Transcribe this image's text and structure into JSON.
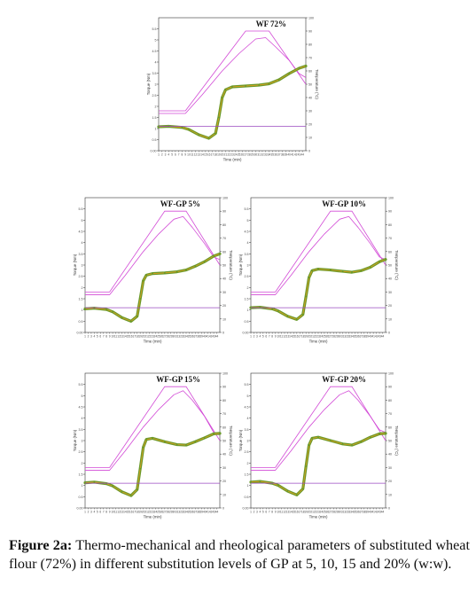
{
  "colors": {
    "temperature": "#d24ad6",
    "torque": "#6a9a2a",
    "torque_core": "#f0a020",
    "baseline": "#9a4ac0",
    "axis": "#333333"
  },
  "figure": {
    "caption_label": "Figure 2a:",
    "caption_text": "Thermo-mechanical and rheological parameters of substituted wheat flour (72%) in different substitution levels of GP at 5, 10, 15 and 20% (w:w)."
  },
  "chart_data": [
    {
      "type": "line",
      "title": "WF 72%",
      "xlabel": "Time (min)",
      "ylabel": "Torque (Nm)",
      "ylabel_right": "Temperature (°C)",
      "xlim": [
        1,
        45
      ],
      "ylim": [
        0,
        6
      ],
      "ylim_right": [
        0,
        100
      ],
      "y_ticks": [
        "0.00",
        "0.5",
        "1",
        "1.5",
        "2",
        "2.5",
        "3",
        "3.5",
        "4",
        "4.5",
        "5",
        "5.5"
      ],
      "y_ticks_right": [
        "0",
        "10",
        "20",
        "30",
        "40",
        "50",
        "60",
        "70",
        "80",
        "90",
        "100"
      ],
      "x_ticks": [
        "1",
        "2",
        "3",
        "4",
        "5",
        "6",
        "7",
        "8",
        "9",
        "10",
        "11",
        "12",
        "13",
        "14",
        "15",
        "16",
        "17",
        "18",
        "19",
        "20",
        "21",
        "22",
        "23",
        "24",
        "25",
        "26",
        "27",
        "28",
        "29",
        "30",
        "31",
        "32",
        "33",
        "34",
        "35",
        "36",
        "37",
        "38",
        "39",
        "40",
        "41",
        "42",
        "43",
        "44"
      ],
      "series": [
        {
          "role": "temperature_target",
          "x": [
            1,
            9,
            27,
            34,
            45
          ],
          "y": [
            30,
            30,
            90,
            90,
            50
          ]
        },
        {
          "role": "temperature_measured",
          "x": [
            1,
            9,
            14,
            20,
            25,
            30,
            33,
            36,
            40,
            43,
            45
          ],
          "y": [
            28,
            28,
            42,
            60,
            73,
            84,
            85,
            78,
            68,
            58,
            55
          ]
        },
        {
          "role": "torque",
          "x": [
            1,
            4,
            8,
            10,
            13,
            16,
            18,
            19,
            20,
            21,
            23,
            27,
            31,
            34,
            37,
            40,
            43,
            45
          ],
          "y": [
            1.08,
            1.1,
            1.05,
            0.96,
            0.72,
            0.56,
            0.78,
            1.5,
            2.4,
            2.75,
            2.88,
            2.92,
            2.96,
            3.02,
            3.2,
            3.48,
            3.72,
            3.82
          ]
        },
        {
          "role": "reference_line",
          "x": [
            1,
            45
          ],
          "y": [
            1.1,
            1.1
          ]
        }
      ]
    },
    {
      "type": "line",
      "title": "WF-GP 5%",
      "xlabel": "Time (min)",
      "ylabel": "Torque (Nm)",
      "ylabel_right": "Temperature (°C)",
      "xlim": [
        1,
        45
      ],
      "ylim": [
        0,
        6
      ],
      "ylim_right": [
        0,
        100
      ],
      "y_ticks": [
        "0.00",
        "0.5",
        "1",
        "1.5",
        "2",
        "2.5",
        "3",
        "3.5",
        "4",
        "4.5",
        "5",
        "5.5"
      ],
      "y_ticks_right": [
        "0",
        "10",
        "20",
        "30",
        "40",
        "50",
        "60",
        "70",
        "80",
        "90",
        "100"
      ],
      "x_ticks": [
        "1",
        "2",
        "3",
        "4",
        "5",
        "6",
        "7",
        "8",
        "9",
        "10",
        "11",
        "12",
        "13",
        "14",
        "15",
        "16",
        "17",
        "18",
        "19",
        "20",
        "21",
        "22",
        "23",
        "24",
        "25",
        "26",
        "27",
        "28",
        "29",
        "30",
        "31",
        "32",
        "33",
        "34",
        "35",
        "36",
        "37",
        "38",
        "39",
        "40",
        "41",
        "42",
        "43",
        "44"
      ],
      "series": [
        {
          "role": "temperature_target",
          "x": [
            1,
            9,
            27,
            34,
            45
          ],
          "y": [
            30,
            30,
            90,
            90,
            50
          ]
        },
        {
          "role": "temperature_measured",
          "x": [
            1,
            9,
            14,
            20,
            25,
            30,
            33,
            36,
            40,
            43,
            45
          ],
          "y": [
            28,
            28,
            42,
            60,
            73,
            84,
            86,
            78,
            66,
            56,
            54
          ]
        },
        {
          "role": "torque",
          "x": [
            1,
            4,
            8,
            10,
            13,
            16,
            18,
            19,
            20,
            21,
            23,
            27,
            31,
            34,
            37,
            40,
            43,
            45
          ],
          "y": [
            1.05,
            1.08,
            1.02,
            0.92,
            0.66,
            0.5,
            0.72,
            1.5,
            2.3,
            2.55,
            2.62,
            2.65,
            2.7,
            2.78,
            2.95,
            3.15,
            3.4,
            3.5
          ]
        },
        {
          "role": "reference_line",
          "x": [
            1,
            45
          ],
          "y": [
            1.1,
            1.1
          ]
        }
      ]
    },
    {
      "type": "line",
      "title": "WF-GP 10%",
      "xlabel": "Time (min)",
      "ylabel": "Torque (Nm)",
      "ylabel_right": "Temperature (°C)",
      "xlim": [
        1,
        45
      ],
      "ylim": [
        0,
        6
      ],
      "ylim_right": [
        0,
        100
      ],
      "y_ticks": [
        "0.00",
        "0.5",
        "1",
        "1.5",
        "2",
        "2.5",
        "3",
        "3.5",
        "4",
        "4.5",
        "5",
        "5.5"
      ],
      "y_ticks_right": [
        "0",
        "10",
        "20",
        "30",
        "40",
        "50",
        "60",
        "70",
        "80",
        "90",
        "100"
      ],
      "x_ticks": [
        "1",
        "2",
        "3",
        "4",
        "5",
        "6",
        "7",
        "8",
        "9",
        "10",
        "11",
        "12",
        "13",
        "14",
        "15",
        "16",
        "17",
        "18",
        "19",
        "20",
        "21",
        "22",
        "23",
        "24",
        "25",
        "26",
        "27",
        "28",
        "29",
        "30",
        "31",
        "32",
        "33",
        "34",
        "35",
        "36",
        "37",
        "38",
        "39",
        "40",
        "41",
        "42",
        "43",
        "44"
      ],
      "series": [
        {
          "role": "temperature_target",
          "x": [
            1,
            9,
            27,
            34,
            45
          ],
          "y": [
            30,
            30,
            90,
            90,
            50
          ]
        },
        {
          "role": "temperature_measured",
          "x": [
            1,
            9,
            14,
            20,
            25,
            30,
            33,
            36,
            40,
            43,
            45
          ],
          "y": [
            28,
            28,
            42,
            60,
            73,
            84,
            86,
            78,
            66,
            56,
            54
          ]
        },
        {
          "role": "torque",
          "x": [
            1,
            4,
            8,
            10,
            13,
            16,
            18,
            19,
            20,
            21,
            23,
            27,
            31,
            34,
            37,
            40,
            43,
            45
          ],
          "y": [
            1.1,
            1.12,
            1.05,
            0.95,
            0.72,
            0.58,
            0.8,
            1.6,
            2.45,
            2.75,
            2.82,
            2.78,
            2.72,
            2.68,
            2.75,
            2.9,
            3.15,
            3.25
          ]
        },
        {
          "role": "reference_line",
          "x": [
            1,
            45
          ],
          "y": [
            1.1,
            1.1
          ]
        }
      ]
    },
    {
      "type": "line",
      "title": "WF-GP 15%",
      "xlabel": "Time (min)",
      "ylabel": "Torque (Nm)",
      "ylabel_right": "Temperature (°C)",
      "xlim": [
        1,
        45
      ],
      "ylim": [
        0,
        6
      ],
      "ylim_right": [
        0,
        100
      ],
      "y_ticks": [
        "0.00",
        "0.5",
        "1",
        "1.5",
        "2",
        "2.5",
        "3",
        "3.5",
        "4",
        "4.5",
        "5",
        "5.5"
      ],
      "y_ticks_right": [
        "0",
        "10",
        "20",
        "30",
        "40",
        "50",
        "60",
        "70",
        "80",
        "90",
        "100"
      ],
      "x_ticks": [
        "1",
        "2",
        "3",
        "4",
        "5",
        "6",
        "7",
        "8",
        "9",
        "10",
        "11",
        "12",
        "13",
        "14",
        "15",
        "16",
        "17",
        "18",
        "19",
        "20",
        "21",
        "22",
        "23",
        "24",
        "25",
        "26",
        "27",
        "28",
        "29",
        "30",
        "31",
        "32",
        "33",
        "34",
        "35",
        "36",
        "37",
        "38",
        "39",
        "40",
        "41",
        "42",
        "43",
        "44"
      ],
      "series": [
        {
          "role": "temperature_target",
          "x": [
            1,
            9,
            27,
            34,
            45
          ],
          "y": [
            30,
            30,
            90,
            90,
            50
          ]
        },
        {
          "role": "temperature_measured",
          "x": [
            1,
            9,
            14,
            20,
            25,
            30,
            33,
            36,
            40,
            43,
            45
          ],
          "y": [
            28,
            28,
            42,
            60,
            73,
            84,
            87,
            80,
            68,
            56,
            54
          ]
        },
        {
          "role": "torque",
          "x": [
            1,
            4,
            8,
            10,
            13,
            16,
            18,
            19,
            20,
            21,
            23,
            27,
            31,
            34,
            37,
            40,
            43,
            45
          ],
          "y": [
            1.12,
            1.15,
            1.08,
            0.98,
            0.72,
            0.55,
            0.82,
            1.75,
            2.7,
            3.05,
            3.1,
            2.95,
            2.82,
            2.8,
            2.95,
            3.12,
            3.3,
            3.32
          ]
        },
        {
          "role": "reference_line",
          "x": [
            1,
            45
          ],
          "y": [
            1.1,
            1.1
          ]
        }
      ]
    },
    {
      "type": "line",
      "title": "WF-GP 20%",
      "xlabel": "Time (min)",
      "ylabel": "Torque (Nm)",
      "ylabel_right": "Temperature (°C)",
      "xlim": [
        1,
        45
      ],
      "ylim": [
        0,
        6
      ],
      "ylim_right": [
        0,
        100
      ],
      "y_ticks": [
        "0.00",
        "0.5",
        "1",
        "1.5",
        "2",
        "2.5",
        "3",
        "3.5",
        "4",
        "4.5",
        "5",
        "5.5"
      ],
      "y_ticks_right": [
        "0",
        "10",
        "20",
        "30",
        "40",
        "50",
        "60",
        "70",
        "80",
        "90",
        "100"
      ],
      "x_ticks": [
        "1",
        "2",
        "3",
        "4",
        "5",
        "6",
        "7",
        "8",
        "9",
        "10",
        "11",
        "12",
        "13",
        "14",
        "15",
        "16",
        "17",
        "18",
        "19",
        "20",
        "21",
        "22",
        "23",
        "24",
        "25",
        "26",
        "27",
        "28",
        "29",
        "30",
        "31",
        "32",
        "33",
        "34",
        "35",
        "36",
        "37",
        "38",
        "39",
        "40",
        "41",
        "42",
        "43",
        "44"
      ],
      "series": [
        {
          "role": "temperature_target",
          "x": [
            1,
            9,
            27,
            34,
            45
          ],
          "y": [
            30,
            30,
            90,
            90,
            50
          ]
        },
        {
          "role": "temperature_measured",
          "x": [
            1,
            9,
            14,
            20,
            25,
            30,
            33,
            36,
            40,
            43,
            45
          ],
          "y": [
            28,
            28,
            42,
            60,
            73,
            84,
            87,
            80,
            68,
            58,
            56
          ]
        },
        {
          "role": "torque",
          "x": [
            1,
            4,
            8,
            10,
            13,
            16,
            18,
            19,
            20,
            21,
            23,
            27,
            31,
            34,
            37,
            40,
            43,
            45
          ],
          "y": [
            1.15,
            1.18,
            1.1,
            1.0,
            0.75,
            0.58,
            0.85,
            1.85,
            2.8,
            3.1,
            3.15,
            3.0,
            2.85,
            2.8,
            2.95,
            3.15,
            3.3,
            3.32
          ]
        },
        {
          "role": "reference_line",
          "x": [
            1,
            45
          ],
          "y": [
            1.1,
            1.1
          ]
        }
      ]
    }
  ]
}
